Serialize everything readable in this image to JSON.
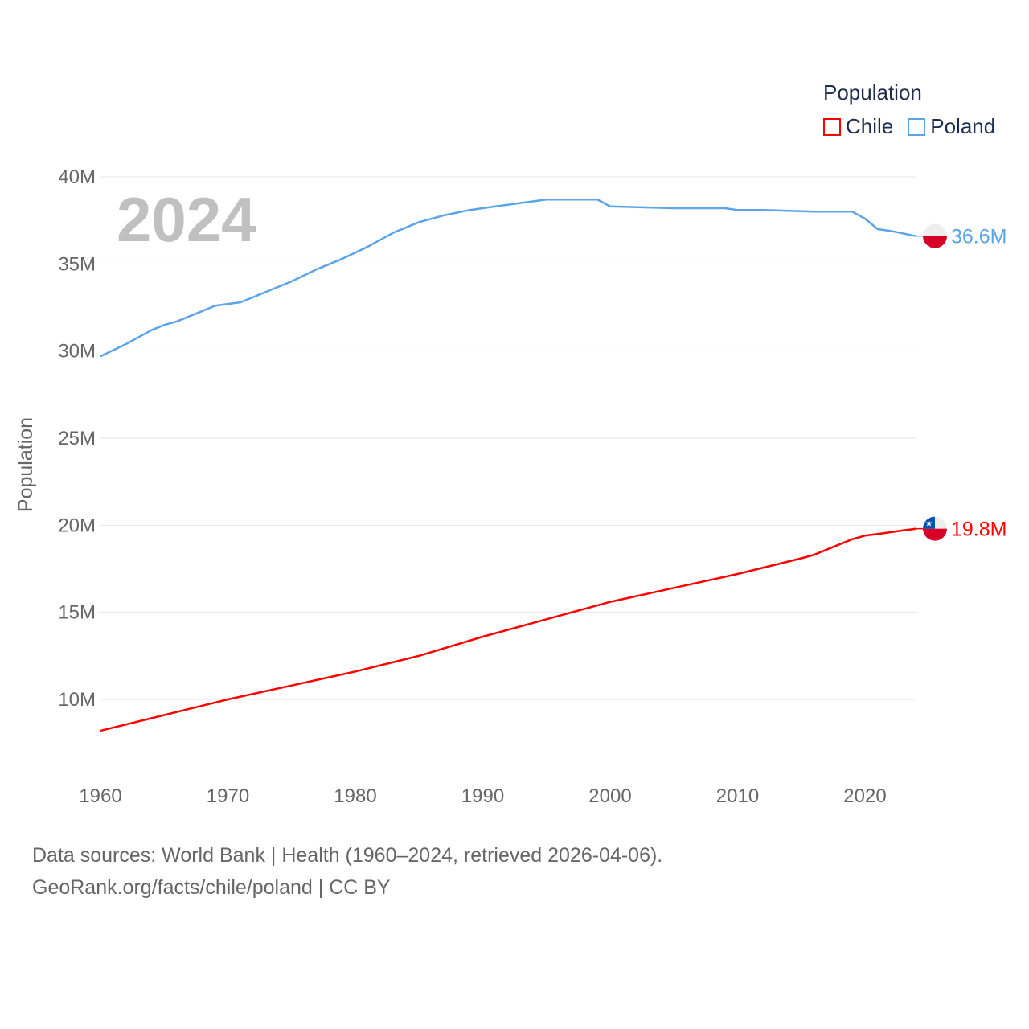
{
  "chart_data": {
    "type": "line",
    "title": "",
    "year_overlay": "2024",
    "xlabel": "",
    "ylabel": "Population",
    "xlim": [
      1960,
      2024
    ],
    "ylim": [
      7,
      40
    ],
    "x_ticks": [
      "1960",
      "1970",
      "1980",
      "1990",
      "2000",
      "2010",
      "2020"
    ],
    "y_ticks": [
      {
        "v": 10,
        "label": "10M"
      },
      {
        "v": 15,
        "label": "15M"
      },
      {
        "v": 20,
        "label": "20M"
      },
      {
        "v": 25,
        "label": "25M"
      },
      {
        "v": 30,
        "label": "30M"
      },
      {
        "v": 35,
        "label": "35M"
      },
      {
        "v": 40,
        "label": "40M"
      }
    ],
    "legend_title": "Population",
    "legend_position": "top-right",
    "series": [
      {
        "name": "Chile",
        "color": "#ff0000",
        "end_label": "19.8M",
        "x": [
          1960,
          1965,
          1970,
          1975,
          1980,
          1985,
          1990,
          1995,
          2000,
          2005,
          2010,
          2015,
          2016,
          2017,
          2018,
          2019,
          2020,
          2021,
          2022,
          2023,
          2024
        ],
        "values": [
          8.2,
          9.1,
          10.0,
          10.8,
          11.6,
          12.5,
          13.6,
          14.6,
          15.6,
          16.4,
          17.2,
          18.1,
          18.3,
          18.6,
          18.9,
          19.2,
          19.4,
          19.5,
          19.6,
          19.7,
          19.8
        ]
      },
      {
        "name": "Poland",
        "color": "#5ba4ea",
        "end_label": "36.6M",
        "x": [
          1960,
          1962,
          1964,
          1965,
          1966,
          1968,
          1969,
          1971,
          1973,
          1975,
          1977,
          1979,
          1981,
          1983,
          1985,
          1987,
          1989,
          1991,
          1993,
          1995,
          1998,
          1999,
          2000,
          2005,
          2009,
          2010,
          2012,
          2016,
          2019,
          2020,
          2021,
          2022,
          2024
        ],
        "values": [
          29.7,
          30.4,
          31.2,
          31.5,
          31.7,
          32.3,
          32.6,
          32.8,
          33.4,
          34.0,
          34.7,
          35.3,
          36.0,
          36.8,
          37.4,
          37.8,
          38.1,
          38.3,
          38.5,
          38.7,
          38.7,
          38.7,
          38.3,
          38.2,
          38.2,
          38.1,
          38.1,
          38.0,
          38.0,
          37.6,
          37.0,
          36.9,
          36.6
        ]
      }
    ],
    "grid": true
  },
  "footer": {
    "line1": "Data sources: World Bank | Health (1960–2024, retrieved 2026-04-06).",
    "line2": "GeoRank.org/facts/chile/poland | CC BY"
  }
}
